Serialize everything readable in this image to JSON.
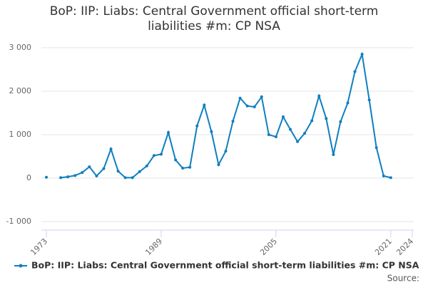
{
  "chart_data": {
    "type": "line",
    "title": "BoP: IIP: Liabs: Central Government official short-term liabilities #m: CP NSA",
    "x": [
      1973,
      1974,
      1975,
      1976,
      1977,
      1978,
      1979,
      1980,
      1981,
      1982,
      1983,
      1984,
      1985,
      1986,
      1987,
      1988,
      1989,
      1990,
      1991,
      1992,
      1993,
      1994,
      1995,
      1996,
      1997,
      1998,
      1999,
      2000,
      2001,
      2002,
      2003,
      2004,
      2005,
      2006,
      2007,
      2008,
      2009,
      2010,
      2011,
      2012,
      2013,
      2014,
      2015,
      2016,
      2017,
      2018,
      2019,
      2020,
      2021
    ],
    "series": [
      {
        "name": "BoP: IIP: Liabs: Central Government official short-term liabilities #m: CP NSA",
        "color": "#0f7fbf",
        "values": [
          20,
          null,
          10,
          30,
          60,
          130,
          260,
          50,
          220,
          670,
          160,
          10,
          10,
          150,
          280,
          520,
          550,
          1050,
          420,
          230,
          250,
          1200,
          1680,
          1070,
          310,
          620,
          1310,
          1840,
          1660,
          1640,
          1870,
          1000,
          950,
          1410,
          1120,
          840,
          1030,
          1320,
          1890,
          1370,
          540,
          1300,
          1730,
          2450,
          2850,
          1800,
          700,
          50,
          10
        ]
      }
    ],
    "xlim": [
      1973,
      2024
    ],
    "xticks": [
      1973,
      1989,
      2005,
      2021,
      2024
    ],
    "ylim": [
      -1000,
      3000
    ],
    "yticks": [
      {
        "value": -1000,
        "label": "-1 000"
      },
      0,
      {
        "value": 1000,
        "label": "1 000"
      },
      {
        "value": 2000,
        "label": "2 000"
      },
      {
        "value": 3000,
        "label": "3 000"
      }
    ],
    "grid": true,
    "source": "Source:"
  }
}
